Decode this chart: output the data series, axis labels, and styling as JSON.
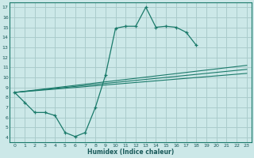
{
  "bg_color": "#cce8e8",
  "grid_color": "#aacccc",
  "line_color": "#1a7a6a",
  "xlabel": "Humidex (Indice chaleur)",
  "xlim": [
    -0.5,
    23.5
  ],
  "ylim": [
    3.5,
    17.5
  ],
  "xticks": [
    0,
    1,
    2,
    3,
    4,
    5,
    6,
    7,
    8,
    9,
    10,
    11,
    12,
    13,
    14,
    15,
    16,
    17,
    18,
    19,
    20,
    21,
    22,
    23
  ],
  "yticks": [
    4,
    5,
    6,
    7,
    8,
    9,
    10,
    11,
    12,
    13,
    14,
    15,
    16,
    17
  ],
  "main_curve": {
    "x": [
      0,
      1,
      2,
      3,
      4,
      5,
      6,
      7,
      8,
      9,
      10,
      11,
      12,
      13,
      14,
      15,
      16,
      17,
      18
    ],
    "y": [
      8.5,
      7.5,
      6.5,
      6.5,
      6.2,
      4.5,
      4.1,
      4.5,
      7.0,
      10.2,
      14.9,
      15.1,
      15.1,
      17.0,
      15.0,
      15.1,
      15.0,
      14.5,
      13.2
    ]
  },
  "straight_lines": [
    {
      "x": [
        0,
        23
      ],
      "y": [
        8.5,
        11.2
      ]
    },
    {
      "x": [
        0,
        23
      ],
      "y": [
        8.5,
        10.8
      ]
    },
    {
      "x": [
        0,
        23
      ],
      "y": [
        8.5,
        10.4
      ]
    }
  ]
}
